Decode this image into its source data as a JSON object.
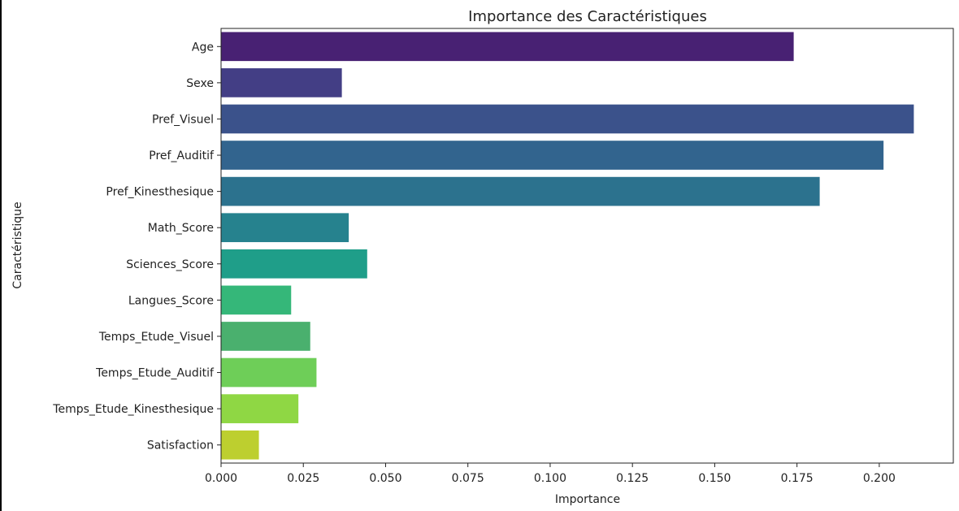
{
  "chart_data": {
    "type": "bar",
    "orientation": "horizontal",
    "title": "Importance des Caractéristiques",
    "xlabel": "Importance",
    "ylabel": "Caractéristique",
    "xlim": [
      0,
      0.2225
    ],
    "xticks": [
      "0.000",
      "0.025",
      "0.050",
      "0.075",
      "0.100",
      "0.125",
      "0.150",
      "0.175",
      "0.200"
    ],
    "grid": false,
    "categories": [
      "Age",
      "Sexe",
      "Pref_Visuel",
      "Pref_Auditif",
      "Pref_Kinesthesique",
      "Math_Score",
      "Sciences_Score",
      "Langues_Score",
      "Temps_Etude_Visuel",
      "Temps_Etude_Auditif",
      "Temps_Etude_Kinesthesique",
      "Satisfaction"
    ],
    "values": [
      0.174,
      0.0367,
      0.2105,
      0.2013,
      0.1819,
      0.0388,
      0.0444,
      0.0213,
      0.0271,
      0.029,
      0.0235,
      0.0115
    ],
    "colors": [
      "#482173",
      "#433e85",
      "#3b528b",
      "#32648e",
      "#2c728e",
      "#26828e",
      "#1f9e89",
      "#35b779",
      "#4ab06e",
      "#6ece58",
      "#8fd744",
      "#bdcf2f"
    ]
  }
}
